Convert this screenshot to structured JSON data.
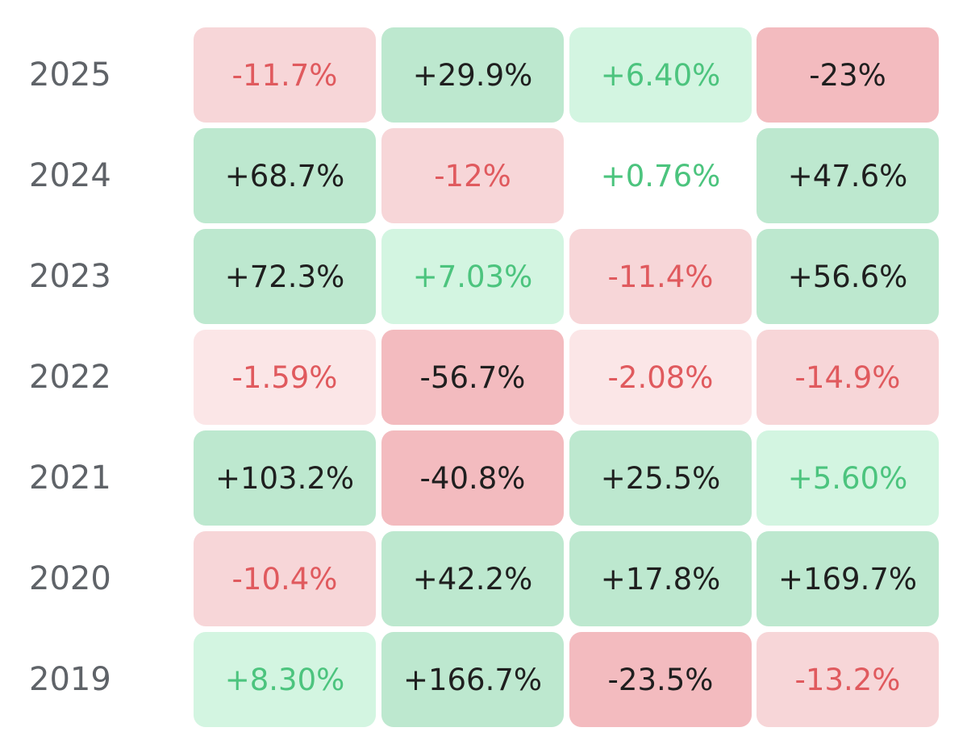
{
  "colors": {
    "label_text": "#5f6368",
    "strong_positive_bg": "#bde8cf",
    "mild_positive_bg": "#d3f5e1",
    "strong_negative_bg": "#f3bbbf",
    "mild_negative_bg": "#f7d6d8",
    "faint_negative_bg": "#fbe6e7",
    "dark_text": "#1f1f1f",
    "green_text": "#4cc47e",
    "red_text": "#e05a5e"
  },
  "chart_data": {
    "type": "heatmap",
    "rows": [
      {
        "label": "2025",
        "cells": [
          {
            "text": "-11.7%",
            "value": -11.7
          },
          {
            "text": "+29.9%",
            "value": 29.9
          },
          {
            "text": "+6.40%",
            "value": 6.4
          },
          {
            "text": "-23%",
            "value": -23
          }
        ]
      },
      {
        "label": "2024",
        "cells": [
          {
            "text": "+68.7%",
            "value": 68.7
          },
          {
            "text": "-12%",
            "value": -12
          },
          {
            "text": "+0.76%",
            "value": 0.76
          },
          {
            "text": "+47.6%",
            "value": 47.6
          }
        ]
      },
      {
        "label": "2023",
        "cells": [
          {
            "text": "+72.3%",
            "value": 72.3
          },
          {
            "text": "+7.03%",
            "value": 7.03
          },
          {
            "text": "-11.4%",
            "value": -11.4
          },
          {
            "text": "+56.6%",
            "value": 56.6
          }
        ]
      },
      {
        "label": "2022",
        "cells": [
          {
            "text": "-1.59%",
            "value": -1.59
          },
          {
            "text": "-56.7%",
            "value": -56.7
          },
          {
            "text": "-2.08%",
            "value": -2.08
          },
          {
            "text": "-14.9%",
            "value": -14.9
          }
        ]
      },
      {
        "label": "2021",
        "cells": [
          {
            "text": "+103.2%",
            "value": 103.2
          },
          {
            "text": "-40.8%",
            "value": -40.8
          },
          {
            "text": "+25.5%",
            "value": 25.5
          },
          {
            "text": "+5.60%",
            "value": 5.6
          }
        ]
      },
      {
        "label": "2020",
        "cells": [
          {
            "text": "-10.4%",
            "value": -10.4
          },
          {
            "text": "+42.2%",
            "value": 42.2
          },
          {
            "text": "+17.8%",
            "value": 17.8
          },
          {
            "text": "+169.7%",
            "value": 169.7
          }
        ]
      },
      {
        "label": "2019",
        "cells": [
          {
            "text": "+8.30%",
            "value": 8.3
          },
          {
            "text": "+166.7%",
            "value": 166.7
          },
          {
            "text": "-23.5%",
            "value": -23.5
          },
          {
            "text": "-13.2%",
            "value": -13.2
          }
        ]
      }
    ]
  }
}
